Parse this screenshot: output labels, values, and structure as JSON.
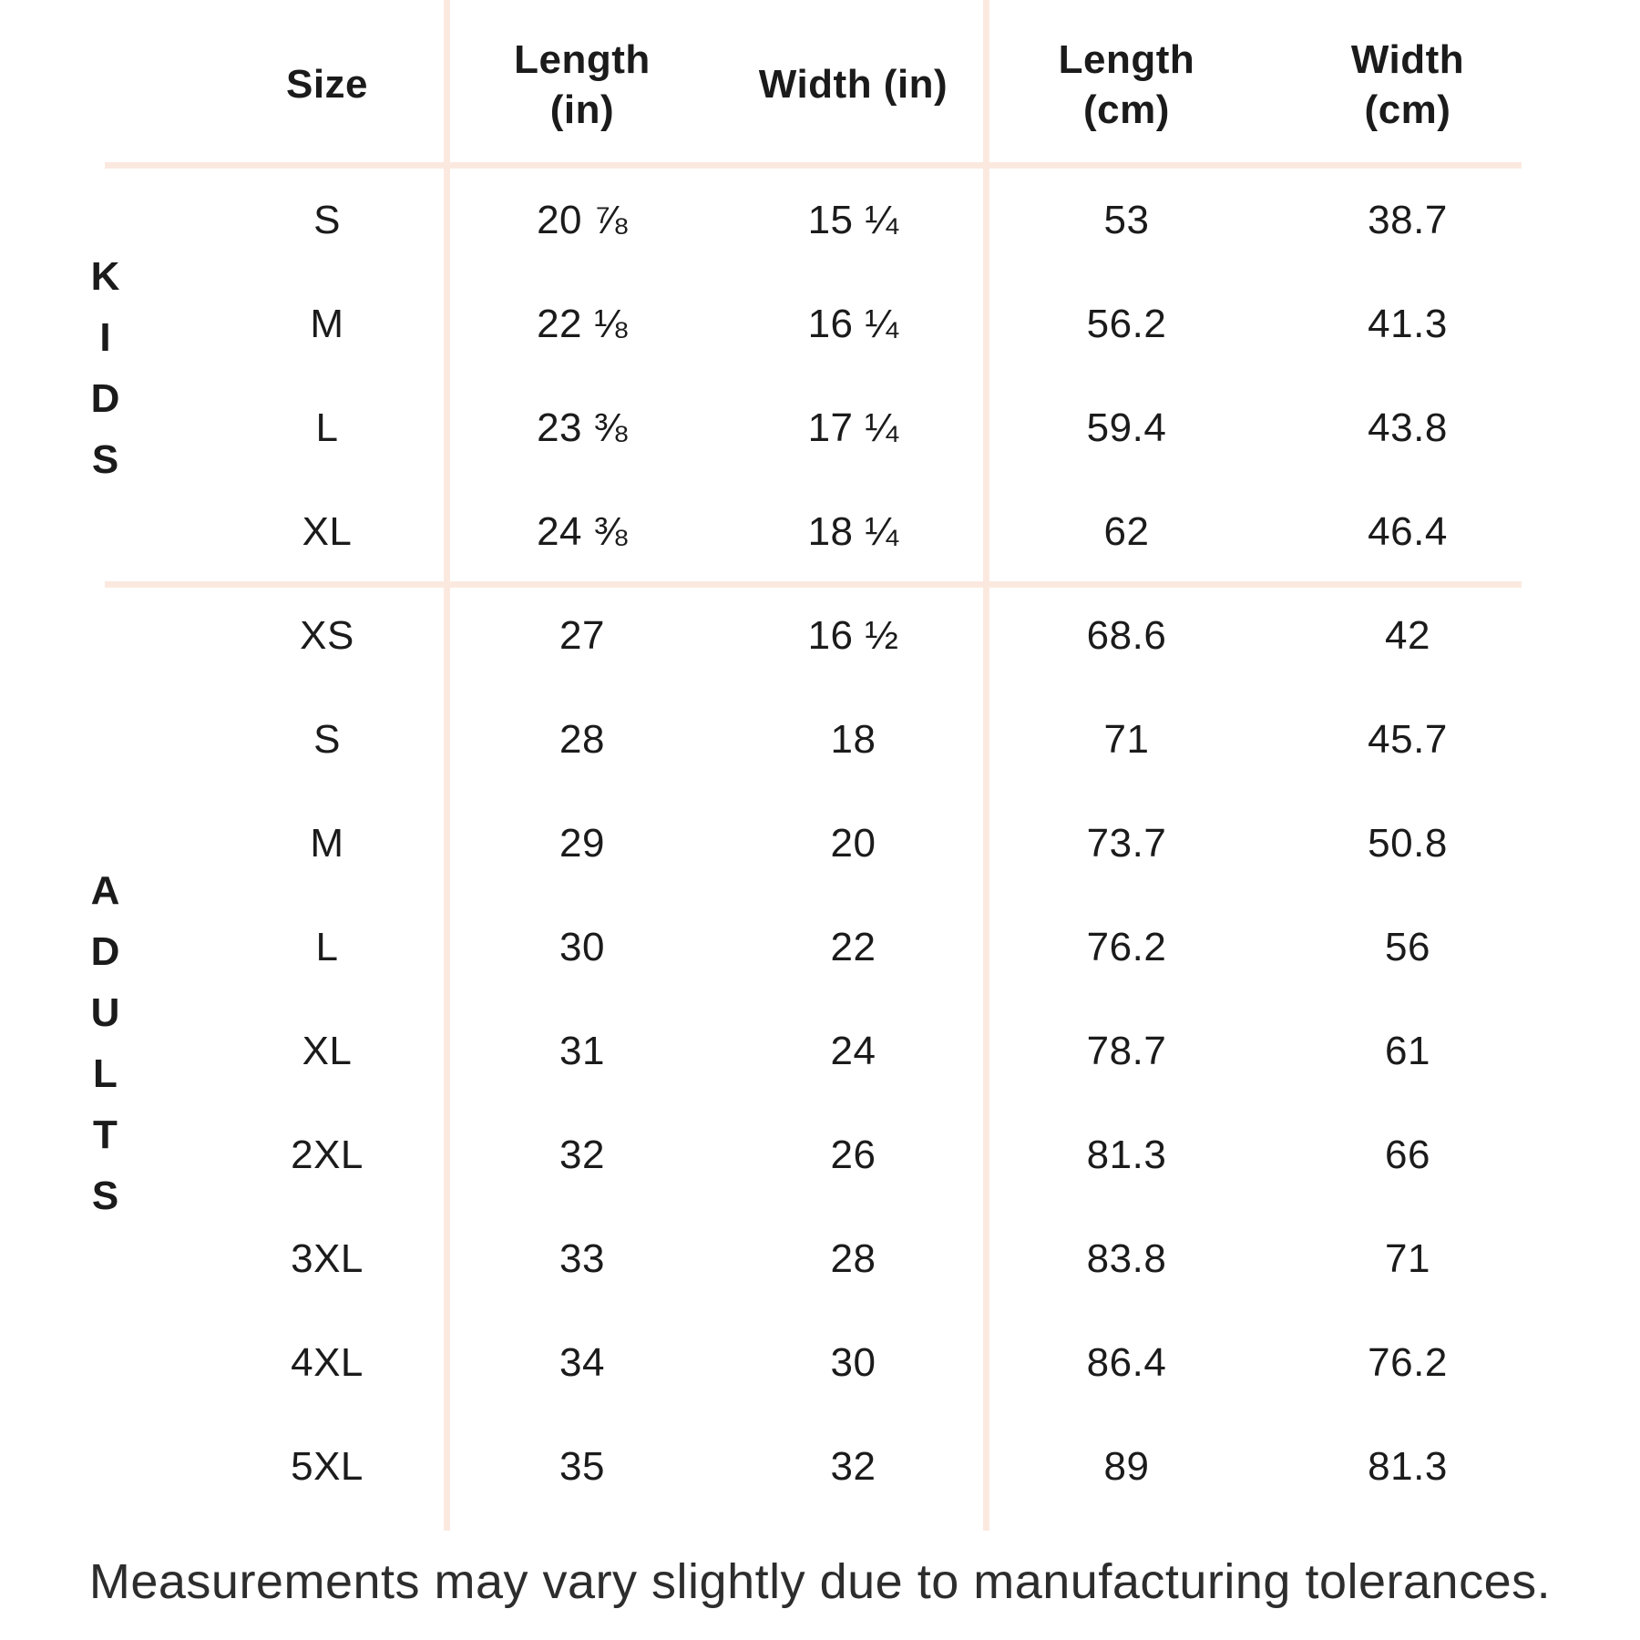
{
  "table": {
    "headers": [
      "Size",
      "Length\n(in)",
      "Width (in)",
      "Length\n(cm)",
      "Width\n(cm)"
    ],
    "groups": [
      {
        "label": "KIDS",
        "rows": [
          {
            "size": "S",
            "length_in": "20 ⅞",
            "width_in": "15 ¼",
            "length_cm": "53",
            "width_cm": "38.7"
          },
          {
            "size": "M",
            "length_in": "22 ⅛",
            "width_in": "16 ¼",
            "length_cm": "56.2",
            "width_cm": "41.3"
          },
          {
            "size": "L",
            "length_in": "23 ⅜",
            "width_in": "17 ¼",
            "length_cm": "59.4",
            "width_cm": "43.8"
          },
          {
            "size": "XL",
            "length_in": "24 ⅜",
            "width_in": "18 ¼",
            "length_cm": "62",
            "width_cm": "46.4"
          }
        ]
      },
      {
        "label": "ADULTS",
        "rows": [
          {
            "size": "XS",
            "length_in": "27",
            "width_in": "16 ½",
            "length_cm": "68.6",
            "width_cm": "42"
          },
          {
            "size": "S",
            "length_in": "28",
            "width_in": "18",
            "length_cm": "71",
            "width_cm": "45.7"
          },
          {
            "size": "M",
            "length_in": "29",
            "width_in": "20",
            "length_cm": "73.7",
            "width_cm": "50.8"
          },
          {
            "size": "L",
            "length_in": "30",
            "width_in": "22",
            "length_cm": "76.2",
            "width_cm": "56"
          },
          {
            "size": "XL",
            "length_in": "31",
            "width_in": "24",
            "length_cm": "78.7",
            "width_cm": "61"
          },
          {
            "size": "2XL",
            "length_in": "32",
            "width_in": "26",
            "length_cm": "81.3",
            "width_cm": "66"
          },
          {
            "size": "3XL",
            "length_in": "33",
            "width_in": "28",
            "length_cm": "83.8",
            "width_cm": "71"
          },
          {
            "size": "4XL",
            "length_in": "34",
            "width_in": "30",
            "length_cm": "86.4",
            "width_cm": "76.2"
          },
          {
            "size": "5XL",
            "length_in": "35",
            "width_in": "32",
            "length_cm": "89",
            "width_cm": "81.3"
          }
        ]
      }
    ]
  },
  "footer": {
    "note": "Measurements may vary slightly due to manufacturing tolerances."
  },
  "colors": {
    "background": "#ffffff",
    "divider": "#fbe9e0",
    "text": "#1b1b1b",
    "note_text": "#2d2d2d"
  }
}
